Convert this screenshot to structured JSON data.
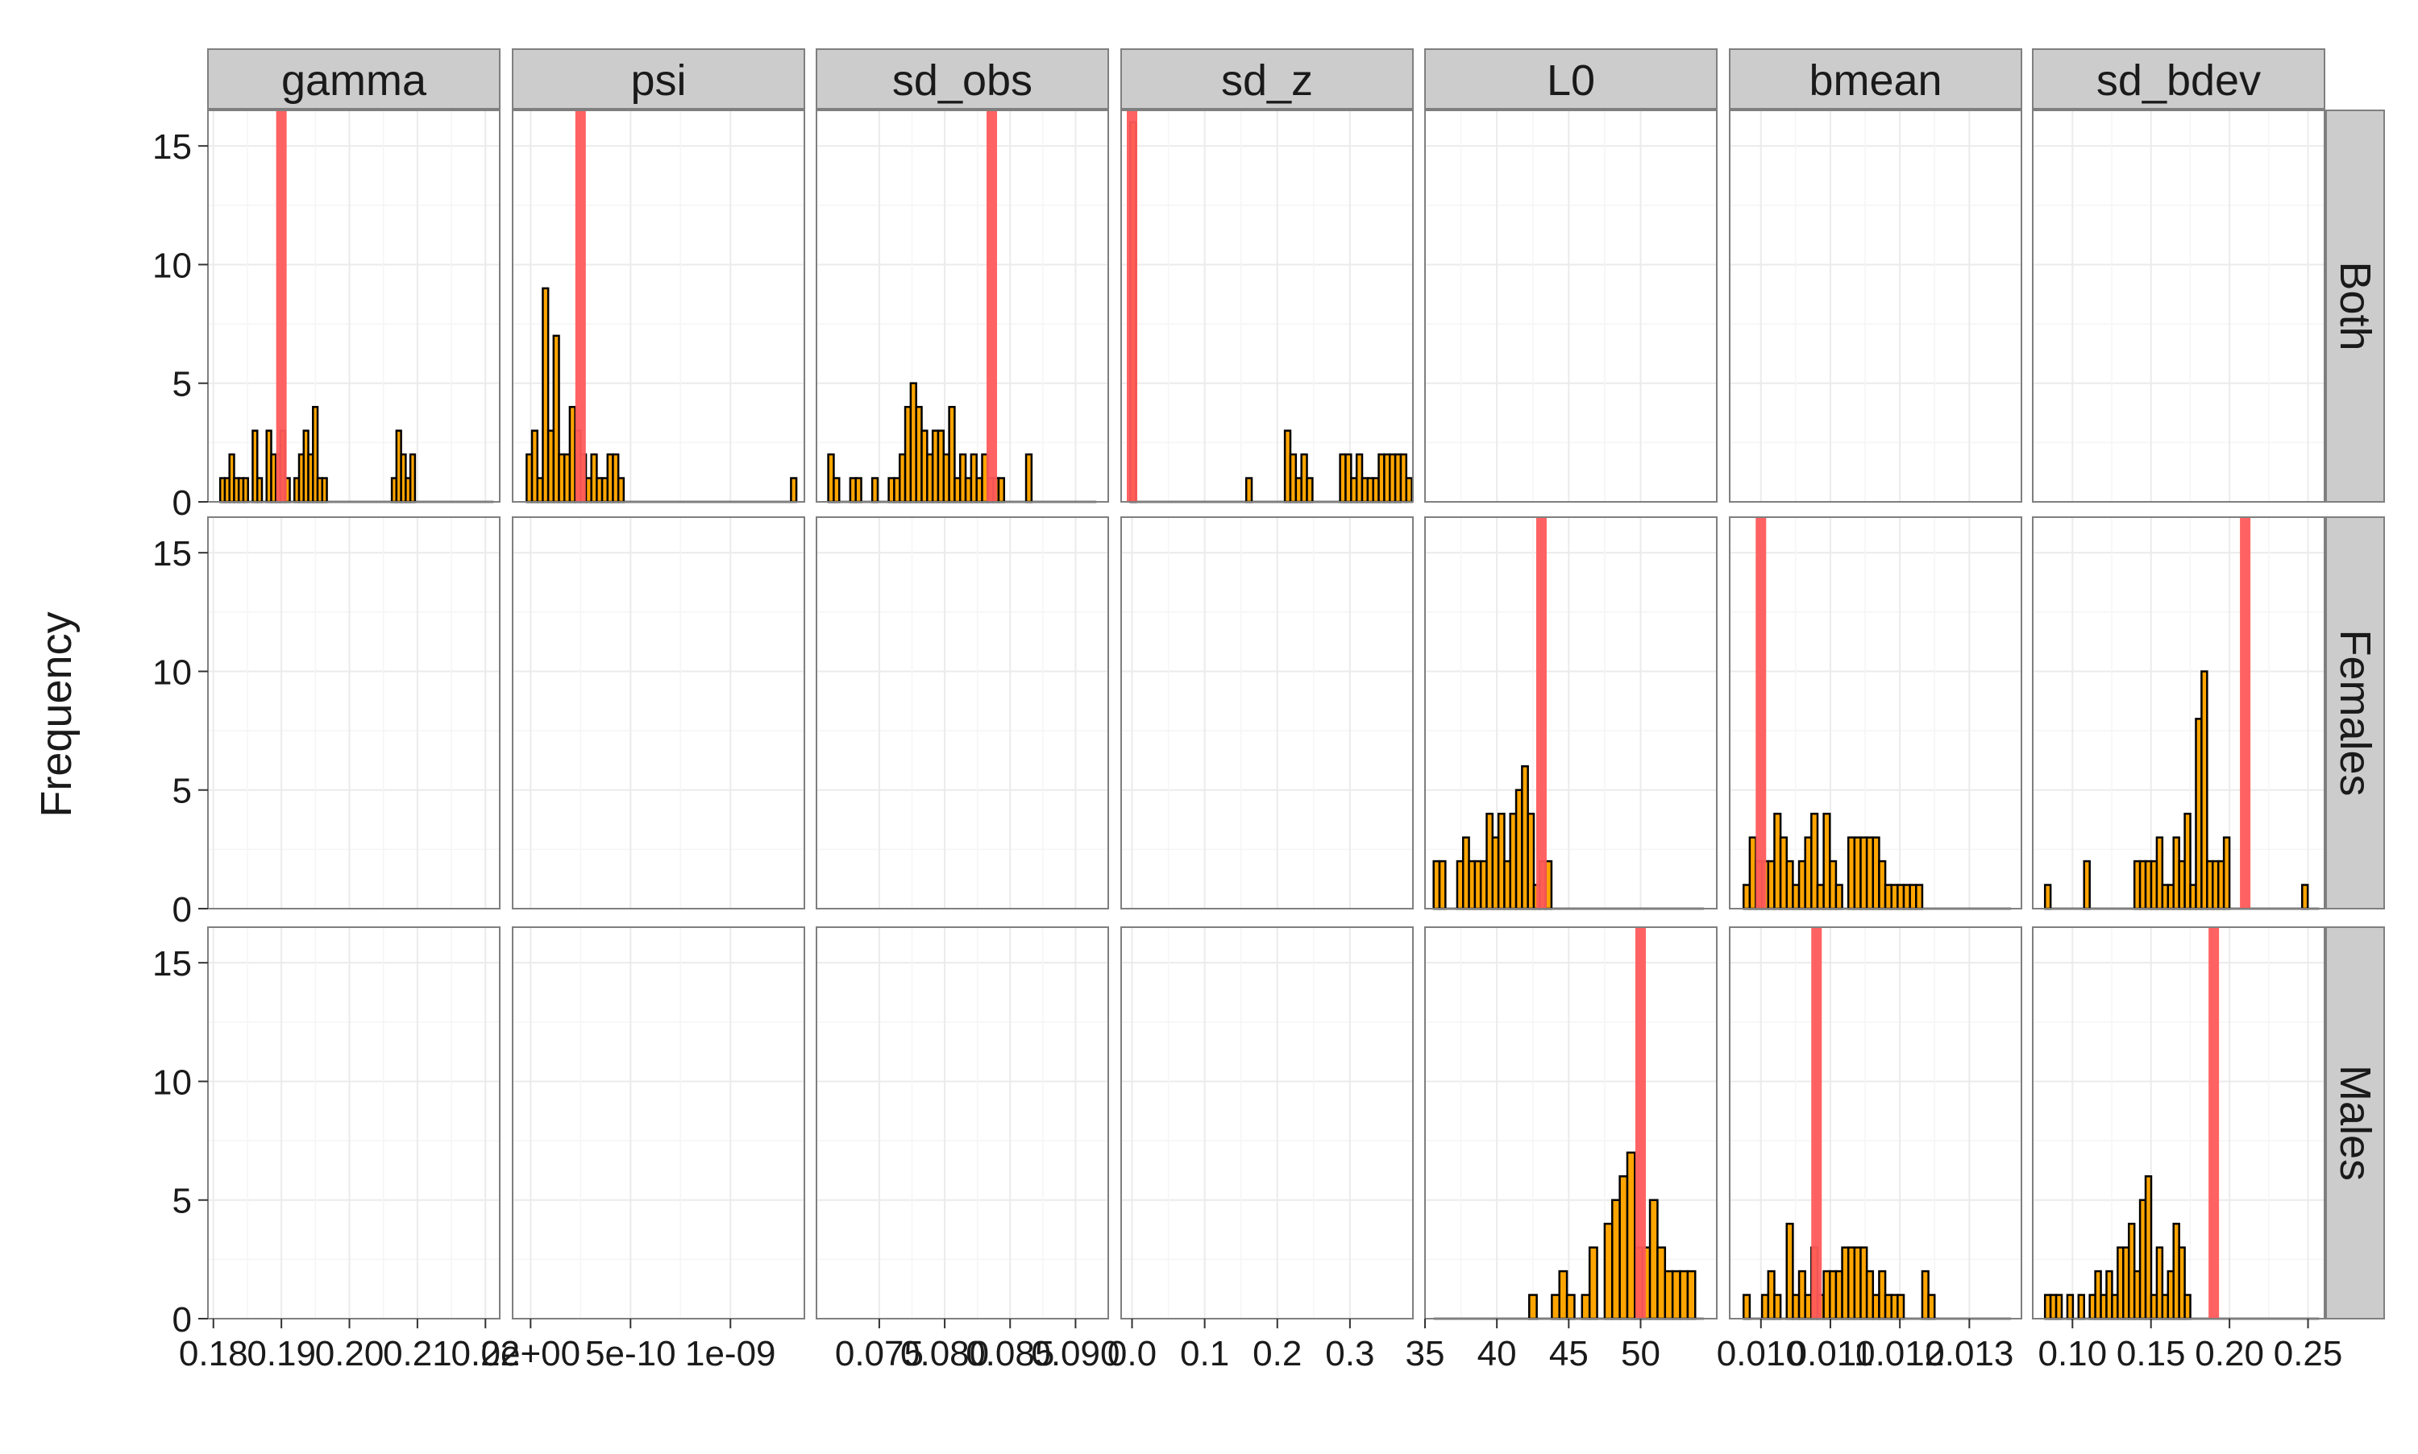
{
  "chart_data": {
    "type": "bar",
    "ylabel": "Frequency",
    "xlabel": "",
    "ylim": [
      0,
      16.5
    ],
    "yticks": [
      0,
      5,
      10,
      15
    ],
    "grid": true,
    "colors": {
      "bar_fill": "#FFA500",
      "bar_stroke": "#000000",
      "true_value_line": "#FF5A5A",
      "strip_fill": "#CCCCCC",
      "panel_border": "#7F7F7F",
      "grid": "#EBEBEB"
    },
    "parameters": [
      {
        "name": "gamma",
        "xlim": [
          0.1792,
          0.2221
        ],
        "tick_values": [
          0.18,
          0.19,
          0.2,
          0.21,
          0.22
        ],
        "tick_labels": [
          "0.18",
          "0.19",
          "0.20",
          "0.21",
          "0.22"
        ]
      },
      {
        "name": "psi",
        "xlim": [
          -9e-11,
          1.37e-09
        ],
        "tick_values": [
          0,
          5e-10,
          1e-09
        ],
        "tick_labels": [
          "0e+00",
          "5e-10",
          "1e-09"
        ]
      },
      {
        "name": "sd_obs",
        "xlim": [
          0.0702,
          0.0925
        ],
        "tick_values": [
          0.075,
          0.08,
          0.085,
          0.09
        ],
        "tick_labels": [
          "0.075",
          "0.080",
          "0.085",
          "0.090"
        ]
      },
      {
        "name": "sd_z",
        "xlim": [
          -0.015,
          0.3867
        ],
        "tick_values": [
          0.0,
          0.1,
          0.2,
          0.3
        ],
        "tick_labels": [
          "0.0",
          "0.1",
          "0.2",
          "0.3"
        ]
      },
      {
        "name": "L0",
        "xlim": [
          35.0,
          55.3
        ],
        "tick_values": [
          35,
          40,
          45,
          50
        ],
        "tick_labels": [
          "35",
          "40",
          "45",
          "50"
        ]
      },
      {
        "name": "bmean",
        "xlim": [
          0.00955,
          0.01375
        ],
        "tick_values": [
          0.01,
          0.011,
          0.012,
          0.013
        ],
        "tick_labels": [
          "0.010",
          "0.011",
          "0.012",
          "0.013"
        ]
      },
      {
        "name": "sd_bdev",
        "xlim": [
          0.0747,
          0.2605
        ],
        "tick_values": [
          0.1,
          0.15,
          0.2,
          0.25
        ],
        "tick_labels": [
          "0.10",
          "0.15",
          "0.20",
          "0.25"
        ]
      }
    ],
    "groups": [
      "Both",
      "Females",
      "Males"
    ],
    "panels": [
      {
        "parameter": "gamma",
        "group": "Both",
        "true_value": 0.19,
        "bin_start": 0.181,
        "bin_width": 0.000682,
        "line_x": [
          0.181,
          0.2212
        ],
        "counts": [
          1,
          1,
          2,
          1,
          1,
          1,
          0,
          3,
          1,
          0,
          3,
          2,
          2,
          3,
          1,
          0,
          1,
          2,
          3,
          2,
          4,
          1,
          1,
          0,
          0,
          0,
          0,
          0,
          0,
          0,
          0,
          0,
          0,
          0,
          0,
          0,
          0,
          1,
          3,
          2,
          1,
          2,
          0,
          0,
          0,
          0,
          0,
          0,
          0,
          0,
          0,
          0,
          0,
          0,
          0,
          0,
          0,
          0,
          0
        ]
      },
      {
        "parameter": "psi",
        "group": "Both",
        "true_value": 2.5e-10,
        "bin_start": -2e-11,
        "bin_width": 2.7e-11,
        "line_x": [
          -2e-11,
          1.3e-09
        ],
        "counts": [
          2,
          3,
          1,
          9,
          3,
          7,
          2,
          2,
          4,
          3,
          2,
          1,
          2,
          1,
          1,
          2,
          2,
          1,
          0,
          0,
          0,
          0,
          0,
          0,
          0,
          0,
          0,
          0,
          0,
          0,
          0,
          0,
          0,
          0,
          0,
          0,
          0,
          0,
          0,
          0,
          0,
          0,
          0,
          0,
          0,
          0,
          0,
          0,
          0,
          1
        ]
      },
      {
        "parameter": "sd_obs",
        "group": "Both",
        "true_value": 0.0836,
        "bin_start": 0.0711,
        "bin_width": 0.00042,
        "line_x": [
          0.0711,
          0.0916
        ],
        "counts": [
          2,
          1,
          0,
          0,
          1,
          1,
          0,
          0,
          1,
          0,
          0,
          1,
          1,
          2,
          4,
          5,
          4,
          3,
          2,
          3,
          3,
          2,
          4,
          1,
          2,
          1,
          2,
          1,
          2,
          1,
          1,
          1,
          0,
          0,
          0,
          0,
          2,
          0
        ]
      },
      {
        "parameter": "sd_z",
        "group": "Both",
        "true_value": 0.0,
        "bin_start": -0.0024,
        "bin_width": 0.0076,
        "line_x": [
          -0.0024,
          0.3699
        ],
        "counts": [
          16,
          0,
          0,
          0,
          0,
          0,
          0,
          0,
          0,
          0,
          0,
          0,
          0,
          0,
          0,
          0,
          0,
          0,
          0,
          0,
          0,
          1,
          0,
          0,
          0,
          0,
          0,
          0,
          3,
          2,
          1,
          2,
          1,
          0,
          0,
          0,
          0,
          0,
          2,
          2,
          1,
          2,
          1,
          1,
          1,
          2,
          2,
          2,
          2,
          2,
          1
        ]
      },
      {
        "parameter": "L0",
        "group": "Females",
        "true_value": 43.1,
        "bin_start": 35.6,
        "bin_width": 0.41,
        "line_x": [
          35.6,
          54.4
        ],
        "counts": [
          2,
          2,
          0,
          0,
          2,
          3,
          2,
          2,
          2,
          4,
          3,
          4,
          2,
          4,
          5,
          6,
          4,
          1,
          2,
          2,
          0,
          0,
          0,
          0,
          0,
          0,
          0,
          0,
          0,
          0,
          0,
          0,
          0,
          0,
          0,
          0,
          0,
          0,
          0,
          0,
          0,
          0,
          0,
          0,
          0,
          0
        ]
      },
      {
        "parameter": "L0",
        "group": "Males",
        "true_value": 50.0,
        "bin_start": 42.25,
        "bin_width": 0.525,
        "line_x": [
          35.6,
          54.4
        ],
        "counts": [
          1,
          0,
          0,
          1,
          2,
          1,
          0,
          1,
          3,
          0,
          4,
          5,
          6,
          7,
          3,
          3,
          5,
          3,
          2,
          2,
          2,
          2
        ]
      },
      {
        "parameter": "bmean",
        "group": "Females",
        "true_value": 0.01,
        "bin_start": 0.00975,
        "bin_width": 8.87e-05,
        "line_x": [
          0.00975,
          0.0136
        ],
        "counts": [
          1,
          3,
          2,
          2,
          2,
          4,
          3,
          2,
          1,
          2,
          3,
          4,
          1,
          4,
          2,
          1,
          0,
          3,
          3,
          3,
          3,
          3,
          2,
          1,
          1,
          1,
          1,
          1,
          1
        ]
      },
      {
        "parameter": "bmean",
        "group": "Males",
        "true_value": 0.0108,
        "bin_start": 0.00975,
        "bin_width": 8.87e-05,
        "line_x": [
          0.00975,
          0.0136
        ],
        "counts": [
          1,
          0,
          0,
          1,
          2,
          1,
          0,
          4,
          1,
          2,
          1,
          3,
          1,
          2,
          2,
          2,
          3,
          3,
          3,
          3,
          2,
          1,
          2,
          1,
          1,
          1,
          0,
          0,
          0,
          2,
          1
        ]
      },
      {
        "parameter": "sd_bdev",
        "group": "Females",
        "true_value": 0.21,
        "bin_start": 0.0825,
        "bin_width": 0.00356,
        "line_x": [
          0.0825,
          0.2571
        ],
        "counts": [
          1,
          0,
          0,
          0,
          0,
          0,
          0,
          2,
          0,
          0,
          0,
          0,
          0,
          0,
          0,
          0,
          2,
          2,
          2,
          2,
          3,
          1,
          1,
          3,
          2,
          4,
          1,
          8,
          10,
          2,
          2,
          2,
          3,
          0,
          0,
          0,
          0,
          0,
          0,
          0,
          0,
          0,
          0,
          0,
          0,
          0,
          1
        ]
      },
      {
        "parameter": "sd_bdev",
        "group": "Males",
        "true_value": 0.19,
        "bin_start": 0.0825,
        "bin_width": 0.00356,
        "line_x": [
          0.0825,
          0.2571
        ],
        "counts": [
          1,
          1,
          1,
          0,
          1,
          0,
          1,
          0,
          1,
          2,
          1,
          2,
          1,
          3,
          3,
          4,
          2,
          5,
          6,
          1,
          3,
          1,
          2,
          4,
          3,
          1,
          0,
          0,
          0,
          0,
          0
        ]
      }
    ]
  }
}
